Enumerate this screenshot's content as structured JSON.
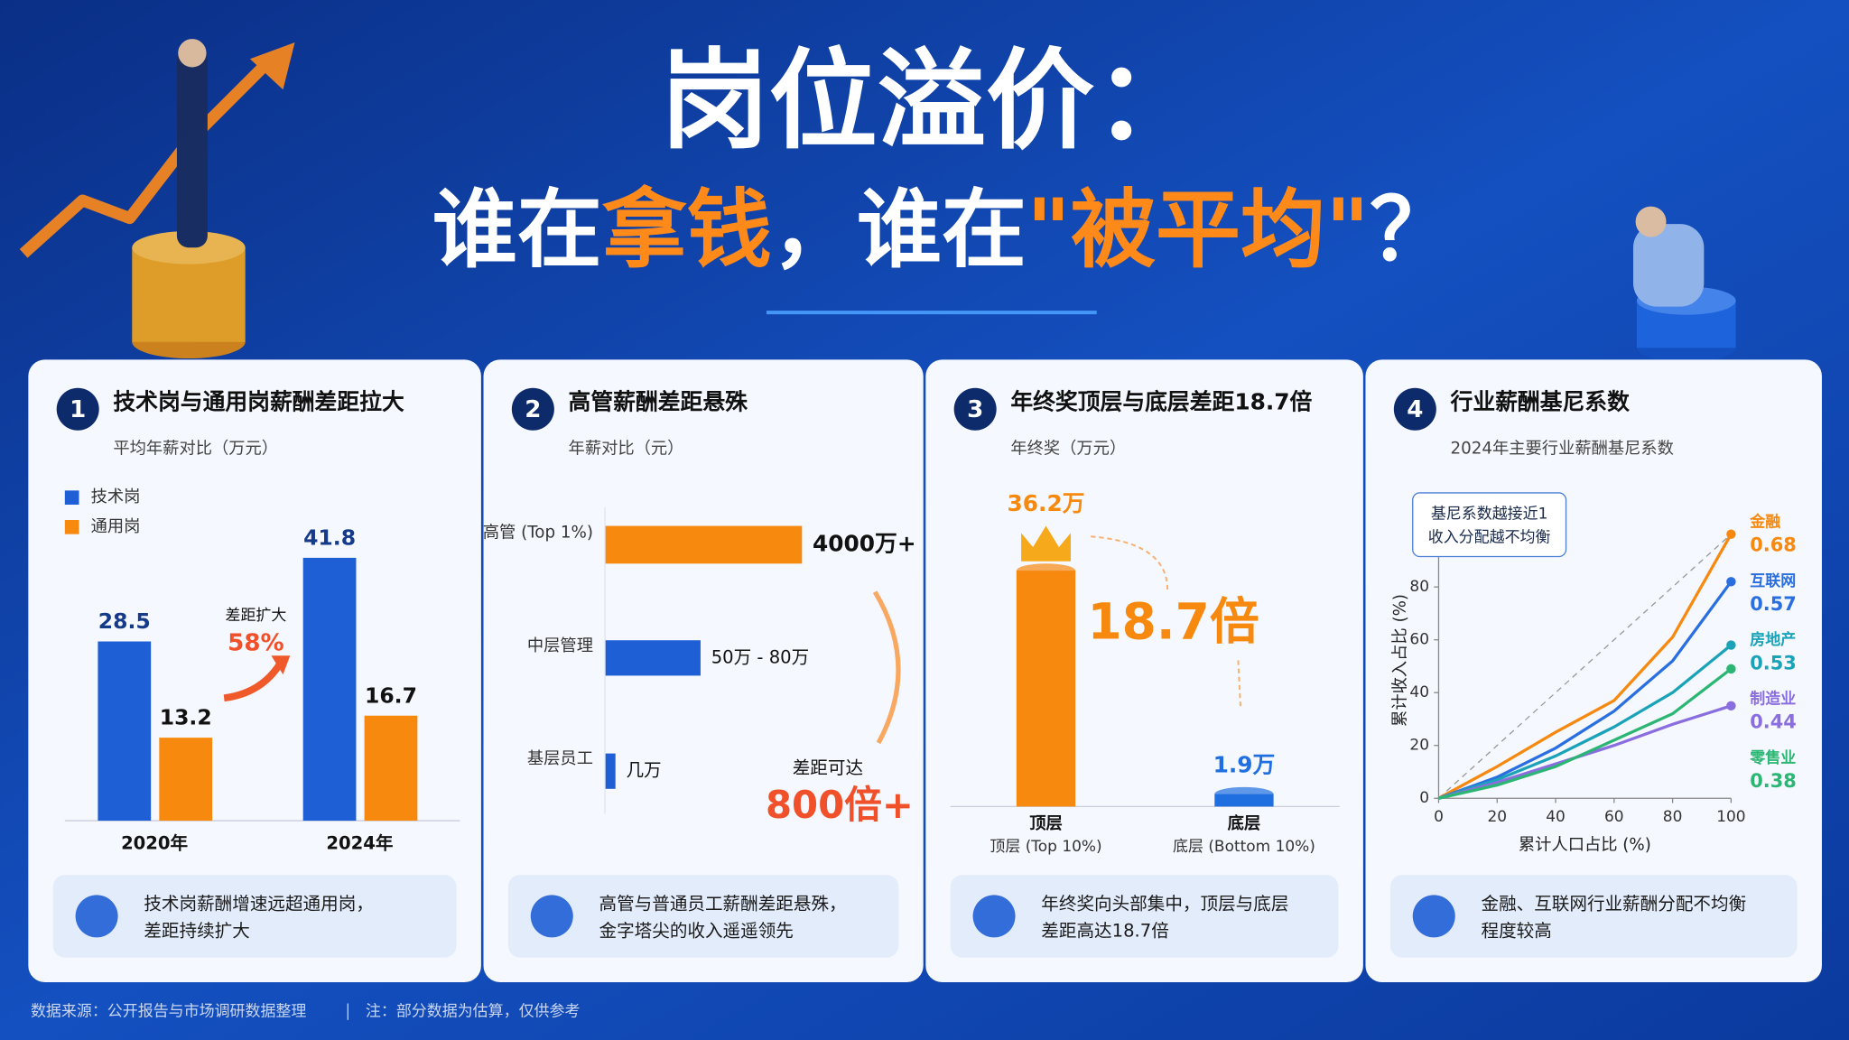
{
  "header": {
    "title": "岗位溢价：",
    "subtitle": [
      {
        "text": "谁在",
        "color": "#ffffff"
      },
      {
        "text": "拿钱",
        "color": "#ff8a1a"
      },
      {
        "text": "，谁在",
        "color": "#ffffff"
      },
      {
        "text": "\"被平均\"",
        "color": "#ff8a1a"
      },
      {
        "text": "？",
        "color": "#ffffff"
      }
    ]
  },
  "cards": [
    {
      "number": "1",
      "title": "技术岗与通用岗薪酬差距拉大",
      "subtitle": "平均年薪对比（万元）",
      "note": [
        "技术岗薪酬增速远超通用岗，",
        "差距持续扩大"
      ]
    },
    {
      "number": "2",
      "title": "高管薪酬差距悬殊",
      "subtitle": "年薪对比（元）",
      "note": [
        "高管与普通员工薪酬差距悬殊，",
        "金字塔尖的收入遥遥领先"
      ]
    },
    {
      "number": "3",
      "title": "年终奖顶层与底层差距18.7倍",
      "subtitle": "年终奖（万元）",
      "note": [
        "年终奖向头部集中，顶层与底层",
        "差距高达18.7倍"
      ]
    },
    {
      "number": "4",
      "title": "行业薪酬基尼系数",
      "subtitle": "2024年主要行业薪酬基尼系数",
      "note": [
        "金融、互联网行业薪酬分配不均衡",
        "程度较高"
      ]
    }
  ],
  "chart_data": [
    {
      "type": "bar",
      "categories": [
        "2020年",
        "2024年"
      ],
      "series": [
        {
          "name": "技术岗",
          "color": "#1f5fd6",
          "values": [
            28.5,
            41.8
          ]
        },
        {
          "name": "通用岗",
          "color": "#f7890f",
          "values": [
            13.2,
            16.7
          ]
        }
      ],
      "ylim": [
        0,
        45
      ],
      "annotation": {
        "label": "差距扩大",
        "value": "58%"
      }
    },
    {
      "type": "hbar",
      "categories": [
        "高管 (Top 1%)",
        "中层管理",
        "基层员工"
      ],
      "values": [
        40000000,
        800000,
        30000
      ],
      "value_labels": [
        "4000万+",
        "50万 - 80万",
        "几万"
      ],
      "colors": [
        "#f7890f",
        "#1f5fd6",
        "#1f5fd6"
      ],
      "xlim": [
        20000,
        50000000
      ],
      "log_scale": true,
      "annotation": {
        "label": "差距可达",
        "value": "800倍+"
      }
    },
    {
      "type": "column",
      "categories": [
        "顶层",
        "底层"
      ],
      "sublabels": [
        "顶层 (Top 10%)",
        "底层 (Bottom 10%)"
      ],
      "values": [
        36.2,
        1.9
      ],
      "value_labels": [
        "36.2万",
        "1.9万"
      ],
      "colors": [
        "#f7890f",
        "#1f6fe0"
      ],
      "ylim": [
        0,
        38
      ],
      "annotation": "18.7倍"
    },
    {
      "type": "line",
      "xlabel": "累计人口占比 (%)",
      "ylabel": "累计收入占比 (%)",
      "xlim": [
        0,
        100
      ],
      "ylim": [
        0,
        100
      ],
      "xticks": [
        0,
        20,
        40,
        60,
        80,
        100
      ],
      "yticks": [
        0,
        20,
        40,
        60,
        80
      ],
      "grid": false,
      "x": [
        0,
        20,
        40,
        60,
        80,
        100
      ],
      "series": [
        {
          "name": "金融",
          "gini": 0.68,
          "color": "#f7890f",
          "values": [
            0,
            12,
            25,
            37,
            61,
            100
          ]
        },
        {
          "name": "互联网",
          "gini": 0.57,
          "color": "#2a6fe0",
          "values": [
            0,
            8,
            19,
            33,
            52,
            82
          ]
        },
        {
          "name": "房地产",
          "gini": 0.53,
          "color": "#1aa3b8",
          "values": [
            0,
            7,
            16,
            27,
            40,
            58
          ]
        },
        {
          "name": "制造业",
          "gini": 0.44,
          "color": "#8a6ee0",
          "values": [
            0,
            6,
            13,
            20,
            28,
            35
          ]
        },
        {
          "name": "零售业",
          "gini": 0.38,
          "color": "#2bb673",
          "values": [
            0,
            5,
            12,
            22,
            32,
            49
          ]
        }
      ],
      "annotation": [
        "基尼系数越接近1",
        "收入分配越不均衡"
      ]
    }
  ],
  "footer": [
    "数据来源：公开报告与市场调研数据整理",
    "注：部分数据为估算，仅供参考"
  ]
}
